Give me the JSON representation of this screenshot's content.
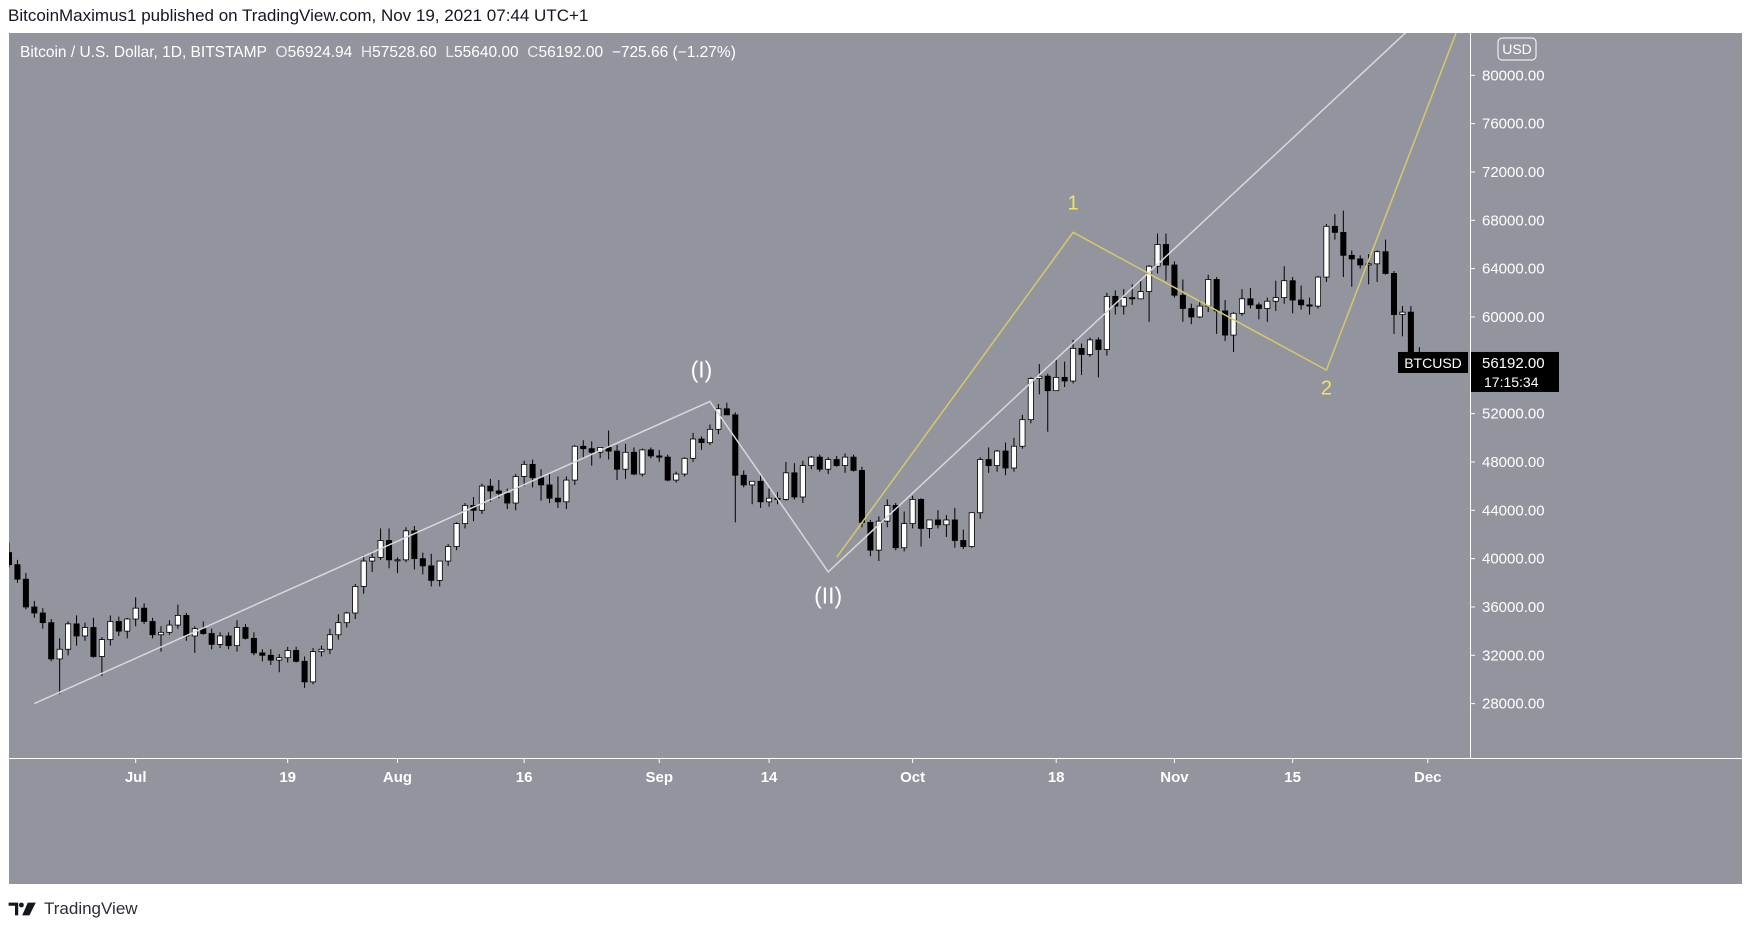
{
  "header": {
    "publisher_text": "BitcoinMaximus1 published on TradingView.com, Nov 19, 2021 07:44 UTC+1"
  },
  "legend": {
    "symbol": "Bitcoin / U.S. Dollar, 1D, BITSTAMP",
    "o_label": "O",
    "o_value": "56924.94",
    "h_label": "H",
    "h_value": "57528.60",
    "l_label": "L",
    "l_value": "55640.00",
    "c_label": "C",
    "c_value": "56192.00",
    "change": "−725.66 (−1.27%)"
  },
  "footer": {
    "brand": "TradingView",
    "logo_icon": "tradingview-logo-icon"
  },
  "colors": {
    "background": "#93959e",
    "candle_up": "#ffffff",
    "candle_down": "#000000",
    "wave_white": "#d8d8dc",
    "wave_yellow": "#d7c96b",
    "label_yellow": "#f5e35a",
    "axis_bg": "#93959e",
    "price_tag_bg": "#000000"
  },
  "chart_data": {
    "type": "candlestick",
    "title": "",
    "symbol": "BTCUSD",
    "currency": "USD",
    "y_ticks": [
      "80000.00",
      "76000.00",
      "72000.00",
      "68000.00",
      "64000.00",
      "60000.00",
      "52000.00",
      "48000.00",
      "44000.00",
      "40000.00",
      "36000.00",
      "32000.00",
      "28000.00"
    ],
    "y_range": [
      23500,
      83500
    ],
    "x_ticks": [
      {
        "label": "Jul",
        "date": "2021-07-01"
      },
      {
        "label": "19",
        "date": "2021-07-19"
      },
      {
        "label": "Aug",
        "date": "2021-08-01"
      },
      {
        "label": "16",
        "date": "2021-08-16"
      },
      {
        "label": "Sep",
        "date": "2021-09-01"
      },
      {
        "label": "14",
        "date": "2021-09-14"
      },
      {
        "label": "Oct",
        "date": "2021-10-01"
      },
      {
        "label": "18",
        "date": "2021-10-18"
      },
      {
        "label": "Nov",
        "date": "2021-11-01"
      },
      {
        "label": "15",
        "date": "2021-11-15"
      },
      {
        "label": "Dec",
        "date": "2021-12-01"
      }
    ],
    "x_range": [
      "2021-06-16",
      "2021-12-06"
    ],
    "last_price": {
      "symbol_label": "BTCUSD",
      "price": "56192.00",
      "countdown": "17:15:34"
    },
    "candles_from": "2021-06-16",
    "candles": [
      [
        40500,
        41300,
        39300,
        39500
      ],
      [
        39500,
        39900,
        38000,
        38300
      ],
      [
        38300,
        38800,
        35800,
        36000
      ],
      [
        36000,
        36500,
        35100,
        35500
      ],
      [
        35500,
        35900,
        34200,
        34700
      ],
      [
        34700,
        35000,
        31500,
        31700
      ],
      [
        31700,
        33400,
        28800,
        32500
      ],
      [
        32500,
        34800,
        32000,
        34600
      ],
      [
        34600,
        35300,
        32800,
        33600
      ],
      [
        33600,
        34700,
        33200,
        34300
      ],
      [
        34300,
        35100,
        31800,
        31900
      ],
      [
        31900,
        33500,
        30300,
        33300
      ],
      [
        33300,
        35300,
        32800,
        34800
      ],
      [
        34800,
        35200,
        33600,
        34000
      ],
      [
        34000,
        35100,
        33400,
        35000
      ],
      [
        35000,
        36800,
        34400,
        35900
      ],
      [
        35900,
        36300,
        34600,
        34800
      ],
      [
        34800,
        35100,
        33400,
        33700
      ],
      [
        33700,
        34400,
        32300,
        33900
      ],
      [
        33900,
        34900,
        33700,
        34500
      ],
      [
        34500,
        36200,
        34200,
        35300
      ],
      [
        35300,
        35500,
        33200,
        33600
      ],
      [
        33600,
        34400,
        32200,
        34200
      ],
      [
        34200,
        34800,
        33700,
        33800
      ],
      [
        33800,
        34200,
        32500,
        32900
      ],
      [
        32900,
        33900,
        32600,
        33600
      ],
      [
        33600,
        33900,
        32500,
        32800
      ],
      [
        32800,
        34900,
        32300,
        34300
      ],
      [
        34300,
        34600,
        33300,
        33400
      ],
      [
        33400,
        33900,
        32000,
        32200
      ],
      [
        32200,
        32500,
        31500,
        32000
      ],
      [
        32000,
        32500,
        31200,
        31600
      ],
      [
        31600,
        32100,
        30600,
        31800
      ],
      [
        31800,
        32700,
        31400,
        32400
      ],
      [
        32400,
        32700,
        31400,
        31500
      ],
      [
        31500,
        31900,
        29300,
        29800
      ],
      [
        29800,
        32600,
        29600,
        32300
      ],
      [
        32300,
        32800,
        31900,
        32500
      ],
      [
        32500,
        34200,
        32100,
        33700
      ],
      [
        33700,
        35400,
        33300,
        34700
      ],
      [
        34700,
        35600,
        34300,
        35500
      ],
      [
        35500,
        37900,
        35000,
        37700
      ],
      [
        37700,
        40300,
        37100,
        39800
      ],
      [
        39800,
        40600,
        38900,
        40100
      ],
      [
        40100,
        42500,
        39900,
        41500
      ],
      [
        41500,
        42500,
        39200,
        39900
      ],
      [
        39900,
        40100,
        38800,
        39900
      ],
      [
        39900,
        42600,
        39700,
        42300
      ],
      [
        42300,
        42700,
        39100,
        40000
      ],
      [
        40000,
        40500,
        38700,
        39400
      ],
      [
        39400,
        40400,
        37700,
        38200
      ],
      [
        38200,
        39300,
        37700,
        39800
      ],
      [
        39800,
        41200,
        39400,
        41000
      ],
      [
        41000,
        43000,
        40700,
        42900
      ],
      [
        42900,
        44600,
        42500,
        44400
      ],
      [
        44400,
        45100,
        43100,
        44000
      ],
      [
        44000,
        46200,
        43700,
        46000
      ],
      [
        46000,
        46600,
        44700,
        45600
      ],
      [
        45600,
        46500,
        45000,
        45400
      ],
      [
        45400,
        45800,
        44100,
        44600
      ],
      [
        44600,
        47000,
        44000,
        46800
      ],
      [
        46800,
        48100,
        46000,
        47800
      ],
      [
        47800,
        48200,
        45900,
        46700
      ],
      [
        46700,
        47400,
        44800,
        46100
      ],
      [
        46100,
        47100,
        44600,
        45000
      ],
      [
        45000,
        46800,
        44200,
        44700
      ],
      [
        44700,
        46800,
        44100,
        46500
      ],
      [
        46500,
        49400,
        46100,
        49300
      ],
      [
        49300,
        49800,
        48300,
        49100
      ],
      [
        49100,
        49700,
        47700,
        48800
      ],
      [
        48800,
        49200,
        48300,
        49200
      ],
      [
        49200,
        50600,
        48200,
        48900
      ],
      [
        48900,
        49400,
        46500,
        47400
      ],
      [
        47400,
        49500,
        46600,
        48800
      ],
      [
        48800,
        49200,
        46900,
        47000
      ],
      [
        47000,
        49100,
        46800,
        49000
      ],
      [
        49000,
        49200,
        48300,
        48500
      ],
      [
        48500,
        49000,
        48000,
        48400
      ],
      [
        48400,
        48600,
        46400,
        46500
      ],
      [
        46500,
        47200,
        46300,
        47000
      ],
      [
        47000,
        48400,
        46800,
        48300
      ],
      [
        48300,
        50400,
        48000,
        49900
      ],
      [
        49900,
        50100,
        49000,
        49600
      ],
      [
        49600,
        51100,
        49400,
        50700
      ],
      [
        50700,
        52800,
        50300,
        52400
      ],
      [
        52400,
        52900,
        51900,
        51900
      ],
      [
        51900,
        52100,
        43000,
        46900
      ],
      [
        46900,
        47300,
        45900,
        46100
      ],
      [
        46100,
        46400,
        44500,
        46400
      ],
      [
        46400,
        47000,
        44200,
        44700
      ],
      [
        44700,
        45800,
        44300,
        45000
      ],
      [
        45000,
        45500,
        44500,
        44900
      ],
      [
        44900,
        48000,
        44800,
        47100
      ],
      [
        47100,
        47900,
        44900,
        45100
      ],
      [
        45100,
        48100,
        44600,
        47700
      ],
      [
        47700,
        48500,
        47400,
        48400
      ],
      [
        48400,
        48600,
        47200,
        47400
      ],
      [
        47400,
        48400,
        47000,
        48200
      ],
      [
        48200,
        48500,
        47600,
        47700
      ],
      [
        47700,
        48700,
        47100,
        48400
      ],
      [
        48400,
        48600,
        47200,
        47300
      ],
      [
        47300,
        47600,
        42600,
        43000
      ],
      [
        43000,
        43200,
        40200,
        40700
      ],
      [
        40700,
        43500,
        39800,
        43100
      ],
      [
        43100,
        44900,
        42600,
        44400
      ],
      [
        44400,
        44600,
        40700,
        40900
      ],
      [
        40900,
        43900,
        40600,
        42900
      ],
      [
        42900,
        45200,
        42500,
        44900
      ],
      [
        44900,
        45000,
        41000,
        42500
      ],
      [
        42500,
        43200,
        41700,
        43200
      ],
      [
        43200,
        44000,
        42500,
        42800
      ],
      [
        42800,
        43600,
        41800,
        43200
      ],
      [
        43200,
        44200,
        40900,
        41500
      ],
      [
        41500,
        42400,
        40800,
        41000
      ],
      [
        41000,
        43800,
        40900,
        43800
      ],
      [
        43800,
        48400,
        43300,
        48200
      ],
      [
        48200,
        49200,
        47100,
        47700
      ],
      [
        47700,
        49000,
        47200,
        48900
      ],
      [
        48900,
        49600,
        46900,
        47500
      ],
      [
        47500,
        50000,
        47200,
        49300
      ],
      [
        49300,
        51900,
        49100,
        51500
      ],
      [
        51500,
        55000,
        51200,
        54900
      ],
      [
        54900,
        56100,
        53600,
        55100
      ],
      [
        55100,
        55300,
        50500,
        53900
      ],
      [
        53900,
        56500,
        53900,
        55000
      ],
      [
        55000,
        56300,
        54200,
        54700
      ],
      [
        54700,
        58100,
        54500,
        57400
      ],
      [
        57400,
        57800,
        55200,
        56900
      ],
      [
        56900,
        58300,
        56700,
        58100
      ],
      [
        58100,
        58300,
        55000,
        57300
      ],
      [
        57300,
        62000,
        56800,
        61700
      ],
      [
        61700,
        62200,
        60200,
        60900
      ],
      [
        60900,
        62300,
        60200,
        61600
      ],
      [
        61600,
        62700,
        61000,
        61500
      ],
      [
        61500,
        63000,
        62100,
        62100
      ],
      [
        62100,
        64300,
        59600,
        64200
      ],
      [
        64200,
        66900,
        63600,
        66000
      ],
      [
        66000,
        66900,
        63000,
        64300
      ],
      [
        64300,
        64600,
        61600,
        61800
      ],
      [
        61800,
        63100,
        59600,
        60700
      ],
      [
        60700,
        61100,
        59400,
        60000
      ],
      [
        60000,
        61400,
        59900,
        60900
      ],
      [
        60900,
        63500,
        60400,
        63100
      ],
      [
        63100,
        63300,
        58600,
        60500
      ],
      [
        60500,
        61400,
        58000,
        58500
      ],
      [
        58500,
        60400,
        57100,
        60300
      ],
      [
        60300,
        62300,
        60100,
        61500
      ],
      [
        61500,
        62400,
        60700,
        61000
      ],
      [
        61000,
        61200,
        59800,
        60700
      ],
      [
        60700,
        61600,
        59600,
        61300
      ],
      [
        61300,
        63000,
        60500,
        61600
      ],
      [
        61600,
        64200,
        61100,
        63000
      ],
      [
        63000,
        63300,
        60300,
        61400
      ],
      [
        61400,
        62600,
        60600,
        61000
      ],
      [
        61000,
        61600,
        60200,
        60900
      ],
      [
        60900,
        63400,
        60700,
        63300
      ],
      [
        63300,
        67700,
        62900,
        67500
      ],
      [
        67500,
        68500,
        66400,
        67000
      ],
      [
        67000,
        68800,
        63300,
        65100
      ],
      [
        65100,
        65500,
        62500,
        64800
      ],
      [
        64800,
        65100,
        64000,
        64300
      ],
      [
        64300,
        65200,
        62700,
        64400
      ],
      [
        64400,
        65500,
        62900,
        65400
      ],
      [
        65400,
        66400,
        63500,
        63600
      ],
      [
        63600,
        63800,
        58600,
        60200
      ],
      [
        60200,
        60900,
        58400,
        60400
      ],
      [
        60400,
        60900,
        56900,
        56900
      ],
      [
        56900,
        57500,
        55600,
        56200
      ]
    ],
    "wave_lines": [
      {
        "name": "white-wave",
        "color": "#d8d8dc",
        "points": [
          [
            "2021-06-19",
            28000
          ],
          [
            "2021-09-07",
            53000
          ],
          [
            "2021-09-21",
            38900
          ],
          [
            "2021-12-06",
            88500
          ]
        ]
      },
      {
        "name": "yellow-wave",
        "color": "#d7c96b",
        "points": [
          [
            "2021-09-22",
            40100
          ],
          [
            "2021-10-20",
            67000
          ],
          [
            "2021-11-19",
            55600
          ],
          [
            "2021-12-06",
            86500
          ]
        ]
      }
    ],
    "wave_labels": [
      {
        "text": "(I)",
        "date": "2021-09-06",
        "price": 55000,
        "color": "#ffffff",
        "size": 23
      },
      {
        "text": "(II)",
        "date": "2021-09-21",
        "price": 36300,
        "color": "#ffffff",
        "size": 23
      },
      {
        "text": "1",
        "date": "2021-10-20",
        "price": 68900,
        "color": "#f5e35a",
        "size": 20
      },
      {
        "text": "2",
        "date": "2021-11-19",
        "price": 53600,
        "color": "#f5e35a",
        "size": 20
      }
    ]
  }
}
